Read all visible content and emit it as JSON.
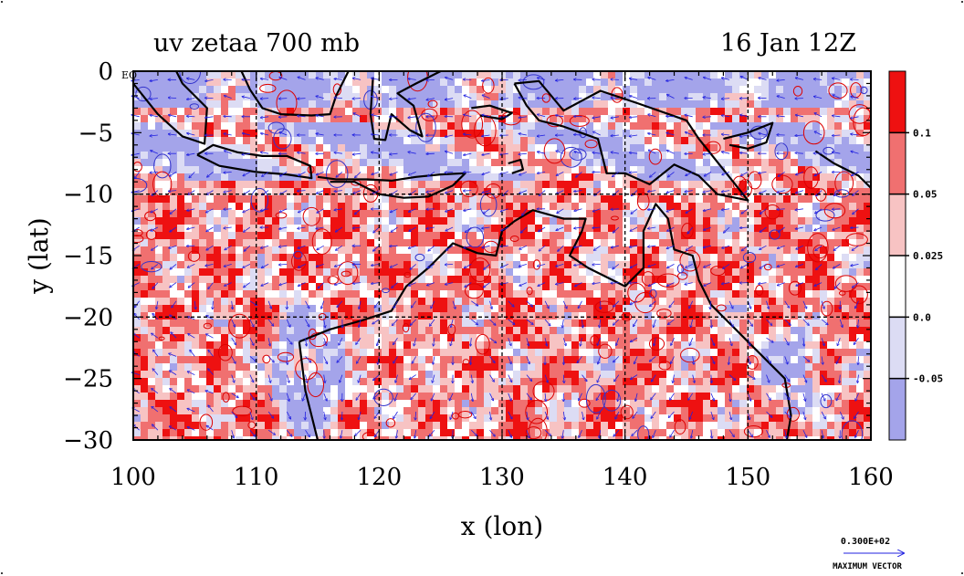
{
  "chart_data": {
    "type": "heatmap",
    "title_left": "uv zetaa 700 mb",
    "title_right": "16 Jan 12Z",
    "xlabel": "x (lon)",
    "ylabel": "y (lat)",
    "xlim": [
      100,
      160
    ],
    "ylim": [
      -30,
      0
    ],
    "x_ticks": [
      100,
      110,
      120,
      130,
      140,
      150,
      160
    ],
    "y_ticks": [
      0,
      -5,
      -10,
      -15,
      -20,
      -25,
      -30
    ],
    "y_tick_labels": [
      "0",
      "−5",
      "−10",
      "−15",
      "−20",
      "−25",
      "−30"
    ],
    "corner_label": "EQ",
    "grid": true,
    "grid_lines_lon": [
      110,
      120,
      130,
      140,
      150
    ],
    "grid_lines_lat": [
      -10,
      -20
    ],
    "colorbar": {
      "levels": [
        "0.1",
        "0.05",
        "0.025",
        "0.0",
        "-0.05"
      ],
      "colors": [
        "#ee1111",
        "#f07070",
        "#f7c3c3",
        "#ffffff",
        "#dcdcf4",
        "#a4a4ea"
      ]
    },
    "vector_key": {
      "value": "0.300E+02",
      "label": "MAXIMUM VECTOR"
    },
    "field_color_pos_strong": "#ee1111",
    "field_color_pos_mid": "#f07070",
    "field_color_pos_weak": "#f7c3c3",
    "field_color_neg": "#a4a4ea",
    "vector_color": "#2020e0",
    "coast_color": "#000000"
  }
}
